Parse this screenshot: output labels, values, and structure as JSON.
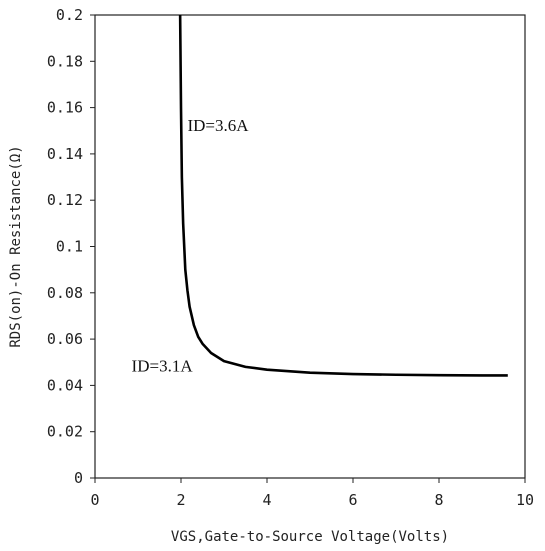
{
  "chart_data": {
    "type": "line",
    "xlabel": "VGS,Gate-to-Source Voltage(Volts)",
    "ylabel": "RDS(on)-On Resistance(Ω)",
    "xlim": [
      0,
      10
    ],
    "ylim": [
      0,
      0.2
    ],
    "x_ticks": [
      "0",
      "2",
      "4",
      "6",
      "8",
      "10"
    ],
    "y_ticks": [
      "0",
      "0.02",
      "0.04",
      "0.06",
      "0.08",
      "0.1",
      "0.12",
      "0.14",
      "0.16",
      "0.18",
      "0.2"
    ],
    "grid": false,
    "legend": "none",
    "series": [
      {
        "x": [
          1.98,
          2.0,
          2.02,
          2.05,
          2.1,
          2.15,
          2.2,
          2.3,
          2.4,
          2.5,
          2.7,
          3.0,
          3.5,
          4.0,
          5.0,
          6.0,
          7.0,
          8.0,
          9.0,
          9.6
        ],
        "y": [
          0.2,
          0.16,
          0.13,
          0.11,
          0.09,
          0.081,
          0.074,
          0.066,
          0.061,
          0.058,
          0.054,
          0.0505,
          0.048,
          0.0468,
          0.0455,
          0.0449,
          0.0446,
          0.0444,
          0.0443,
          0.0443
        ]
      }
    ],
    "annotations": [
      {
        "text": "ID=3.6A",
        "x": 2.15,
        "y": 0.15
      },
      {
        "text": "ID=3.1A",
        "x": 0.85,
        "y": 0.046
      }
    ]
  }
}
